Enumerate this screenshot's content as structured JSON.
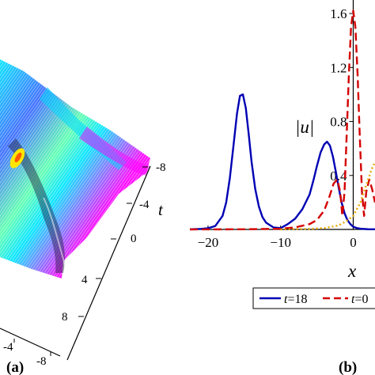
{
  "panels": {
    "a": {
      "label": "(a)",
      "axis_t_label": "t",
      "t_ticks_right": [
        "-8",
        "-4",
        "0",
        "4",
        "8"
      ],
      "x_ticks_front": [
        "-4",
        "-8"
      ],
      "surface_colors": [
        "#00e5ff",
        "#ff00ff",
        "#3a6bff",
        "#5dffb0",
        "#ffe600",
        "#ff5a00"
      ]
    },
    "b": {
      "label": "(b)",
      "ylabel": "|u|",
      "xlabel": "x",
      "legend": [
        {
          "label": "t=18",
          "color": "#0000b4",
          "style": "solid"
        },
        {
          "label": "t=0",
          "color": "#d40000",
          "style": "dashed"
        }
      ]
    }
  },
  "chart_data": {
    "type": "line",
    "title": "",
    "xlabel": "x",
    "ylabel": "|u|",
    "xlim": [
      -22.5,
      3
    ],
    "ylim": [
      0,
      1.7
    ],
    "xticks": [
      -20,
      -10,
      0
    ],
    "xtick_labels": [
      "−20",
      "−10",
      "0"
    ],
    "yticks": [
      0.4,
      0.8,
      1.2,
      1.6
    ],
    "ytick_labels": [
      "0.4",
      "0.8",
      "1.2",
      "1.6"
    ],
    "grid": false,
    "legend_position": "bottom",
    "series": [
      {
        "name": "t=18",
        "color": "#0000b4",
        "dash": "solid",
        "x": [
          -22.5,
          -21,
          -20,
          -19,
          -18,
          -17.5,
          -17,
          -16.5,
          -16,
          -15.6,
          -15.2,
          -14.8,
          -14.4,
          -14,
          -13.5,
          -13,
          -12.5,
          -12,
          -11,
          -10,
          -9,
          -8,
          -7,
          -6,
          -5.5,
          -5,
          -4.5,
          -4,
          -3.6,
          -3.2,
          -2.8,
          -2.4,
          -2,
          -1.6,
          -1.2,
          -0.8,
          -0.4,
          0,
          0.5,
          1,
          2,
          3
        ],
        "y": [
          0.001,
          0.004,
          0.009,
          0.025,
          0.1,
          0.2,
          0.38,
          0.62,
          0.86,
          0.99,
          1.0,
          0.9,
          0.71,
          0.5,
          0.3,
          0.17,
          0.09,
          0.05,
          0.015,
          0.01,
          0.04,
          0.08,
          0.15,
          0.26,
          0.36,
          0.47,
          0.57,
          0.63,
          0.65,
          0.62,
          0.54,
          0.43,
          0.31,
          0.2,
          0.12,
          0.07,
          0.04,
          0.02,
          0.01,
          0.005,
          0.002,
          0.001
        ]
      },
      {
        "name": "t=0",
        "color": "#d40000",
        "dash": "dashed",
        "x": [
          -22.5,
          -15,
          -10,
          -8,
          -6,
          -5,
          -4,
          -3.3,
          -2.7,
          -2.2,
          -1.8,
          -1.5,
          -1.2,
          -0.9,
          -0.6,
          -0.3,
          0,
          0.3,
          0.6,
          0.9,
          1.2,
          1.5,
          1.8,
          2.2,
          2.6,
          3
        ],
        "y": [
          0,
          0.001,
          0.005,
          0.015,
          0.04,
          0.07,
          0.14,
          0.24,
          0.34,
          0.37,
          0.28,
          0.1,
          0.28,
          0.7,
          1.15,
          1.5,
          1.62,
          1.5,
          1.15,
          0.7,
          0.28,
          0.1,
          0.28,
          0.37,
          0.3,
          0.2
        ]
      },
      {
        "name": "",
        "color": "#e6a800",
        "dash": "dotted",
        "x": [
          -10,
          -6,
          -4,
          -2,
          -1,
          0,
          1,
          1.5,
          2,
          2.5,
          3
        ],
        "y": [
          0,
          0.004,
          0.01,
          0.03,
          0.06,
          0.1,
          0.2,
          0.28,
          0.36,
          0.44,
          0.5
        ]
      }
    ]
  }
}
